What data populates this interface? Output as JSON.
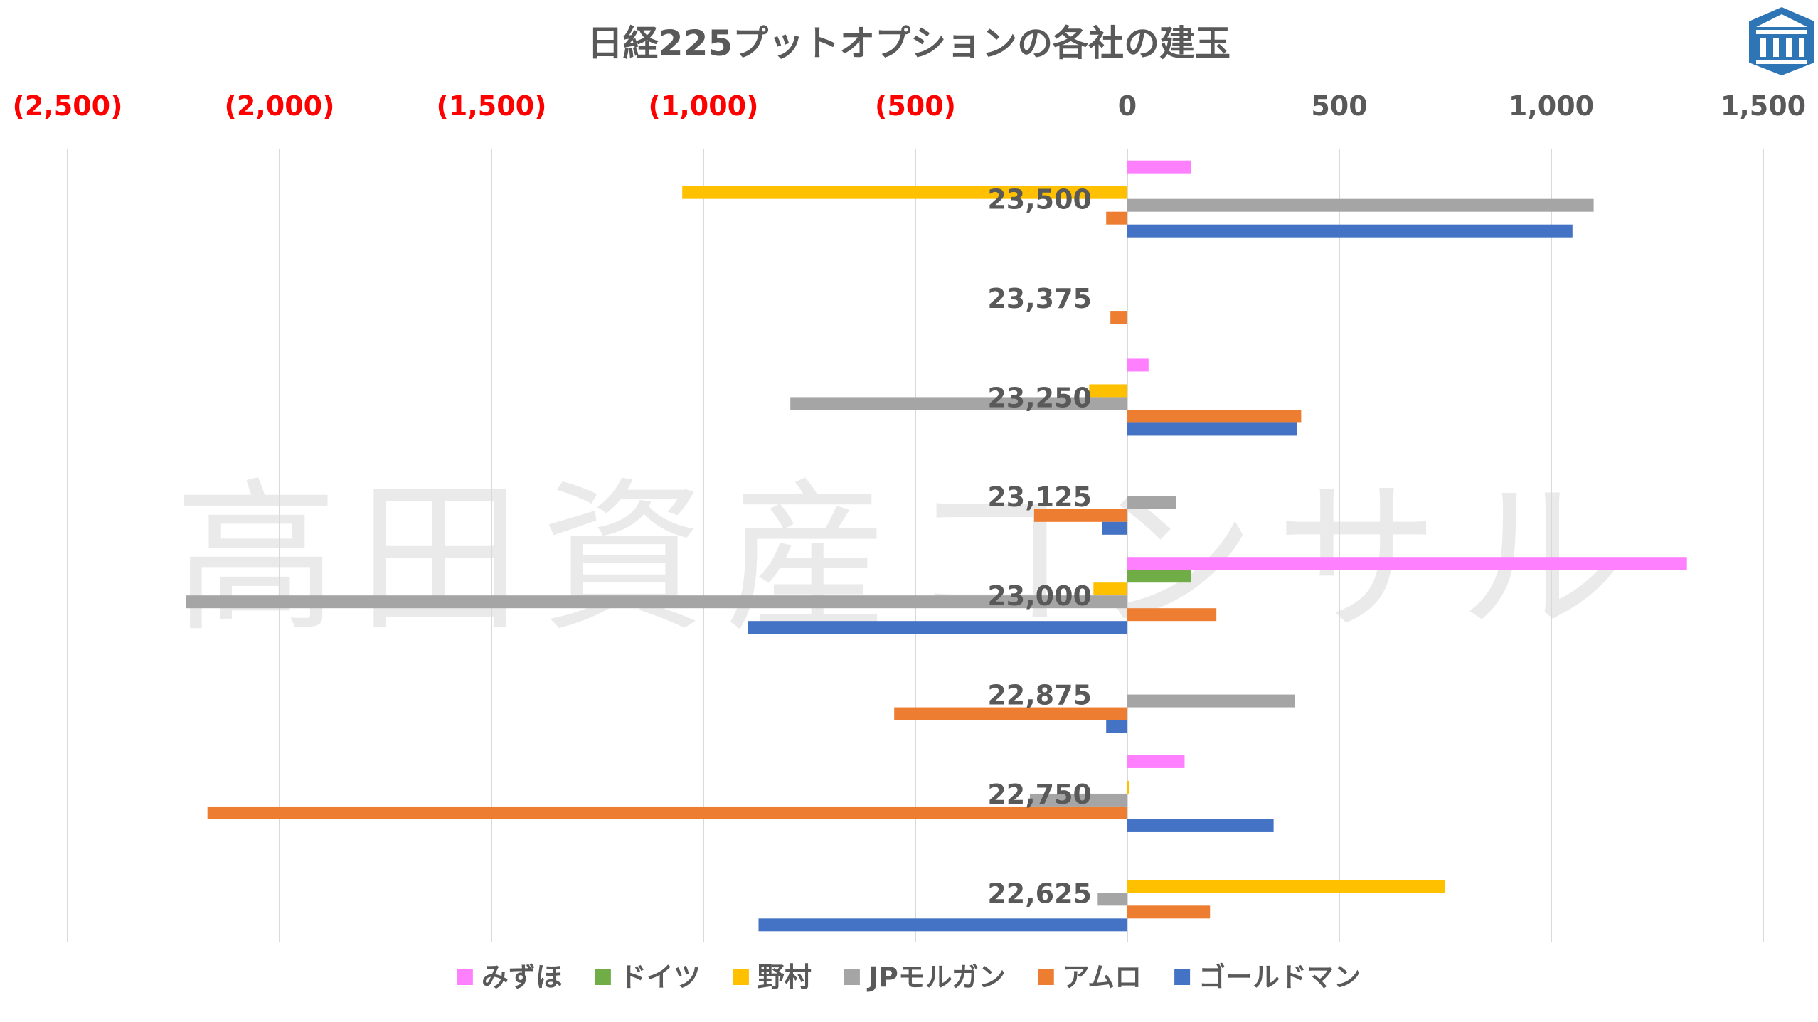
{
  "chart_data": {
    "type": "bar",
    "orientation": "horizontal",
    "title": "日経225プットオプションの各社の建玉",
    "watermark": "高田資産コンサル",
    "categories": [
      "23,500",
      "23,375",
      "23,250",
      "23,125",
      "23,000",
      "22,875",
      "22,750",
      "22,625"
    ],
    "x_ticks": [
      "(2,500)",
      "(2,000)",
      "(1,500)",
      "(1,000)",
      "(500)",
      "0",
      "500",
      "1,000",
      "1,500"
    ],
    "xlim": [
      -2500,
      1500
    ],
    "grid": true,
    "legend_position": "bottom",
    "series": [
      {
        "name": "みずほ",
        "color": "#ff80ff",
        "values": [
          150,
          0,
          50,
          0,
          1320,
          0,
          135,
          0
        ]
      },
      {
        "name": "ドイツ",
        "color": "#70ad47",
        "values": [
          0,
          0,
          0,
          0,
          150,
          0,
          0,
          0
        ]
      },
      {
        "name": "野村",
        "color": "#ffc000",
        "values": [
          -1050,
          0,
          -90,
          0,
          -80,
          0,
          5,
          750
        ]
      },
      {
        "name": "JPモルガン",
        "color": "#a5a5a5",
        "values": [
          1100,
          0,
          -795,
          115,
          -2220,
          395,
          -230,
          -70
        ]
      },
      {
        "name": "アムロ",
        "color": "#ed7d31",
        "values": [
          -50,
          -40,
          410,
          -220,
          210,
          -550,
          -2170,
          195
        ]
      },
      {
        "name": "ゴールドマン",
        "color": "#4472c4",
        "values": [
          1050,
          0,
          400,
          -60,
          -895,
          -50,
          345,
          -870
        ]
      }
    ]
  },
  "logo": {
    "icon": "building-logo-icon",
    "color": "#2e75b6"
  }
}
